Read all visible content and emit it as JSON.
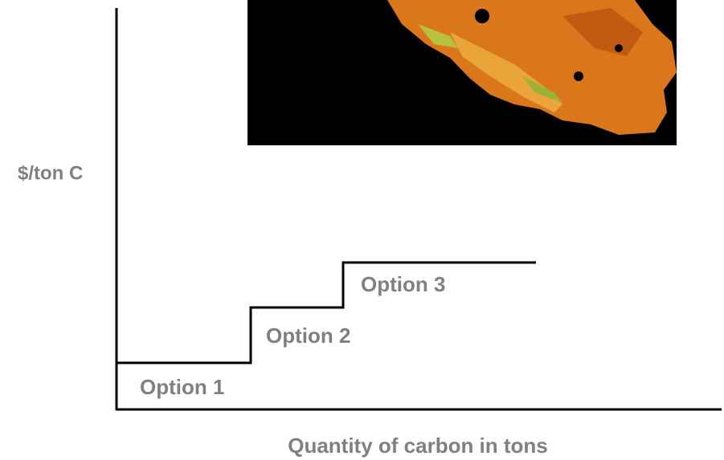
{
  "diagram": {
    "y_axis_label": "$/ton C",
    "x_axis_label": "Quantity of carbon in tons",
    "steps": [
      {
        "label": "Option 1"
      },
      {
        "label": "Option 2"
      },
      {
        "label": "Option 3"
      }
    ]
  }
}
